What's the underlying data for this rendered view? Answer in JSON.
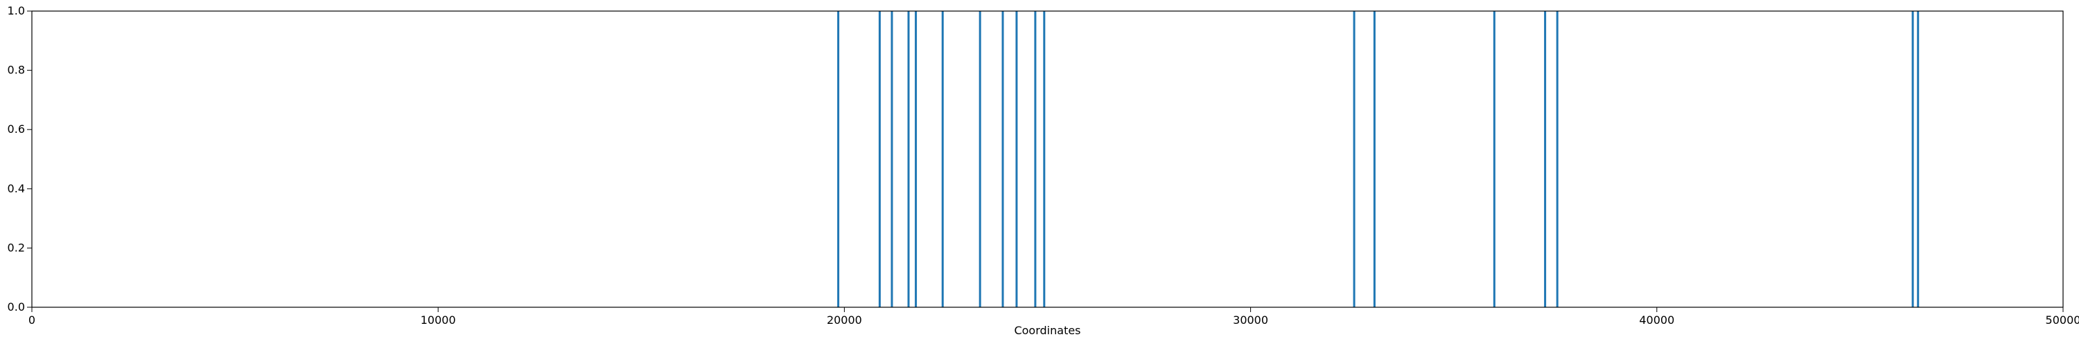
{
  "chart_data": {
    "type": "bar",
    "title": "",
    "xlabel": "Coordinates",
    "ylabel": "",
    "xlim": [
      0,
      50000
    ],
    "ylim": [
      0.0,
      1.0
    ],
    "grid": false,
    "x_ticks": [
      0,
      10000,
      20000,
      30000,
      40000,
      50000
    ],
    "x_tick_labels": [
      "0",
      "10000",
      "20000",
      "30000",
      "40000",
      "50000"
    ],
    "y_ticks": [
      0.0,
      0.2,
      0.4,
      0.6,
      0.8,
      1.0
    ],
    "y_tick_labels": [
      "0.0",
      "0.2",
      "0.4",
      "0.6",
      "0.8",
      "1.0"
    ],
    "bar_color": "#1f77b4",
    "series": [
      {
        "x": [
          19850,
          20870,
          21170,
          21580,
          21760,
          22420,
          23340,
          23900,
          24240,
          24700,
          24920,
          32550,
          33050,
          36000,
          37250,
          37550,
          46300,
          46430
        ],
        "values": [
          1,
          1,
          1,
          1,
          1,
          1,
          1,
          1,
          1,
          1,
          1,
          1,
          1,
          1,
          1,
          1,
          1,
          1
        ]
      }
    ]
  }
}
